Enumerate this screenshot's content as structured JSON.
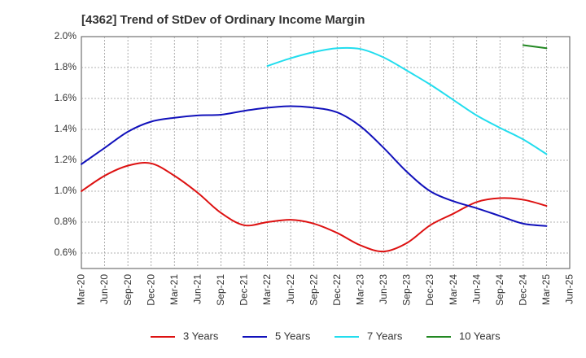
{
  "chart_data": {
    "type": "line",
    "title": "[4362]  Trend of StDev of Ordinary Income Margin",
    "xlabel": "",
    "ylabel": "",
    "x_ticks": [
      "Mar-20",
      "Jun-20",
      "Sep-20",
      "Dec-20",
      "Mar-21",
      "Jun-21",
      "Sep-21",
      "Dec-21",
      "Mar-22",
      "Jun-22",
      "Sep-22",
      "Dec-22",
      "Mar-23",
      "Jun-23",
      "Sep-23",
      "Dec-23",
      "Mar-24",
      "Jun-24",
      "Sep-24",
      "Dec-24",
      "Mar-25",
      "Jun-25"
    ],
    "y_ticks": [
      "0.6%",
      "0.8%",
      "1.0%",
      "1.2%",
      "1.4%",
      "1.6%",
      "1.8%",
      "2.0%"
    ],
    "y_tick_values": [
      0.6,
      0.8,
      1.0,
      1.2,
      1.4,
      1.6,
      1.8,
      2.0
    ],
    "ylim": [
      0.5,
      2.0
    ],
    "grid": true,
    "legend_position": "bottom",
    "series": [
      {
        "name": "3 Years",
        "color": "#dd1111",
        "points": [
          [
            "Mar-20",
            1.0
          ],
          [
            "Jun-20",
            1.1
          ],
          [
            "Sep-20",
            1.165
          ],
          [
            "Dec-20",
            1.18
          ],
          [
            "Mar-21",
            1.1
          ],
          [
            "Jun-21",
            0.99
          ],
          [
            "Sep-21",
            0.86
          ],
          [
            "Dec-21",
            0.78
          ],
          [
            "Mar-22",
            0.8
          ],
          [
            "Jun-22",
            0.815
          ],
          [
            "Sep-22",
            0.79
          ],
          [
            "Dec-22",
            0.73
          ],
          [
            "Mar-23",
            0.65
          ],
          [
            "Jun-23",
            0.61
          ],
          [
            "Sep-23",
            0.665
          ],
          [
            "Dec-23",
            0.78
          ],
          [
            "Mar-24",
            0.855
          ],
          [
            "Jun-24",
            0.93
          ],
          [
            "Sep-24",
            0.955
          ],
          [
            "Dec-24",
            0.945
          ],
          [
            "Mar-25",
            0.905
          ]
        ]
      },
      {
        "name": "5 Years",
        "color": "#1111bb",
        "points": [
          [
            "Mar-20",
            1.175
          ],
          [
            "Jun-20",
            1.28
          ],
          [
            "Sep-20",
            1.385
          ],
          [
            "Dec-20",
            1.45
          ],
          [
            "Mar-21",
            1.475
          ],
          [
            "Jun-21",
            1.49
          ],
          [
            "Sep-21",
            1.495
          ],
          [
            "Dec-21",
            1.52
          ],
          [
            "Mar-22",
            1.54
          ],
          [
            "Jun-22",
            1.55
          ],
          [
            "Sep-22",
            1.54
          ],
          [
            "Dec-22",
            1.51
          ],
          [
            "Mar-23",
            1.42
          ],
          [
            "Jun-23",
            1.28
          ],
          [
            "Sep-23",
            1.125
          ],
          [
            "Dec-23",
            1.0
          ],
          [
            "Mar-24",
            0.935
          ],
          [
            "Jun-24",
            0.89
          ],
          [
            "Sep-24",
            0.84
          ],
          [
            "Dec-24",
            0.79
          ],
          [
            "Mar-25",
            0.775
          ]
        ]
      },
      {
        "name": "7 Years",
        "color": "#22ddee",
        "points": [
          [
            "Mar-22",
            1.81
          ],
          [
            "Jun-22",
            1.86
          ],
          [
            "Sep-22",
            1.9
          ],
          [
            "Dec-22",
            1.925
          ],
          [
            "Mar-23",
            1.92
          ],
          [
            "Jun-23",
            1.865
          ],
          [
            "Sep-23",
            1.78
          ],
          [
            "Dec-23",
            1.69
          ],
          [
            "Mar-24",
            1.59
          ],
          [
            "Jun-24",
            1.49
          ],
          [
            "Sep-24",
            1.41
          ],
          [
            "Dec-24",
            1.335
          ],
          [
            "Mar-25",
            1.24
          ]
        ]
      },
      {
        "name": "10 Years",
        "color": "#228822",
        "points": [
          [
            "Dec-24",
            1.945
          ],
          [
            "Mar-25",
            1.925
          ]
        ]
      }
    ]
  }
}
